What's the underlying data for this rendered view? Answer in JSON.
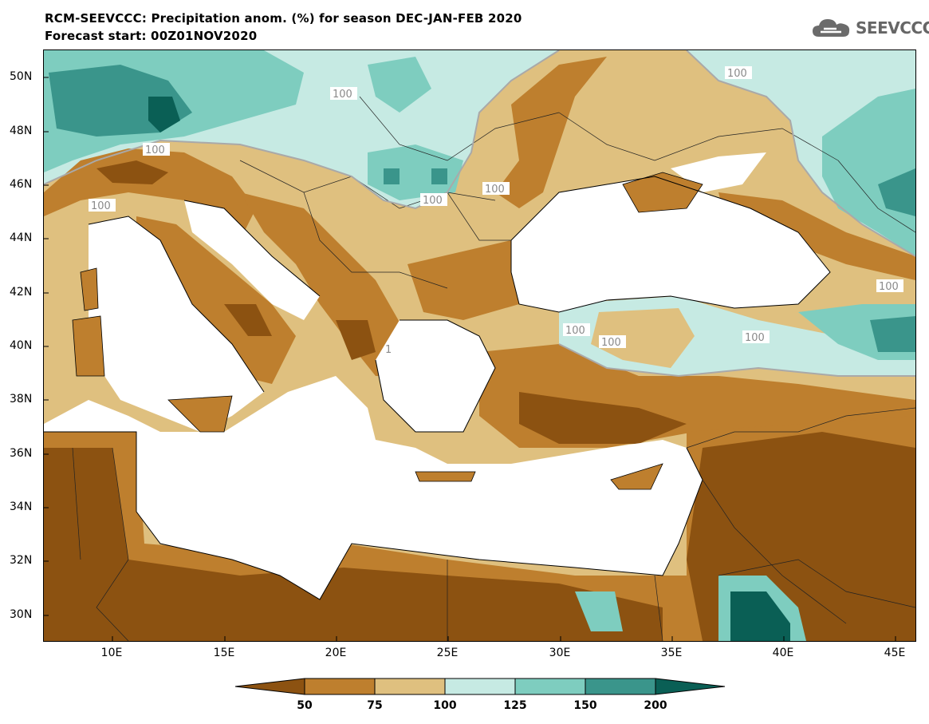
{
  "header": {
    "title": "RCM-SEEVCCC: Precipitation anom. (%) for season DEC-JAN-FEB 2020",
    "subtitle": "Forecast start: 00Z01NOV2020",
    "logo_text": "SEEVCCC"
  },
  "axes": {
    "lat_labels": [
      "50N",
      "48N",
      "46N",
      "44N",
      "42N",
      "40N",
      "38N",
      "36N",
      "34N",
      "32N",
      "30N"
    ],
    "lon_labels": [
      "10E",
      "15E",
      "20E",
      "25E",
      "30E",
      "35E",
      "40E",
      "45E"
    ]
  },
  "contour_labels": [
    "100",
    "100",
    "100",
    "100",
    "100",
    "100",
    "100",
    "100",
    "100",
    "100",
    "1"
  ],
  "colorbar": {
    "labels": [
      "50",
      "75",
      "100",
      "125",
      "150",
      "200"
    ],
    "colors": [
      "#8c5211",
      "#be7f2e",
      "#dfc07f",
      "#c6eae3",
      "#7ecdbf",
      "#3a958b",
      "#0a5f55"
    ]
  },
  "palette": {
    "very_dry": "#8c5211",
    "dry": "#be7f2e",
    "slightly_dry": "#dfc07f",
    "slightly_wet": "#c6eae3",
    "wet": "#7ecdbf",
    "very_wet": "#3a958b",
    "extreme_wet": "#0a5f55"
  }
}
